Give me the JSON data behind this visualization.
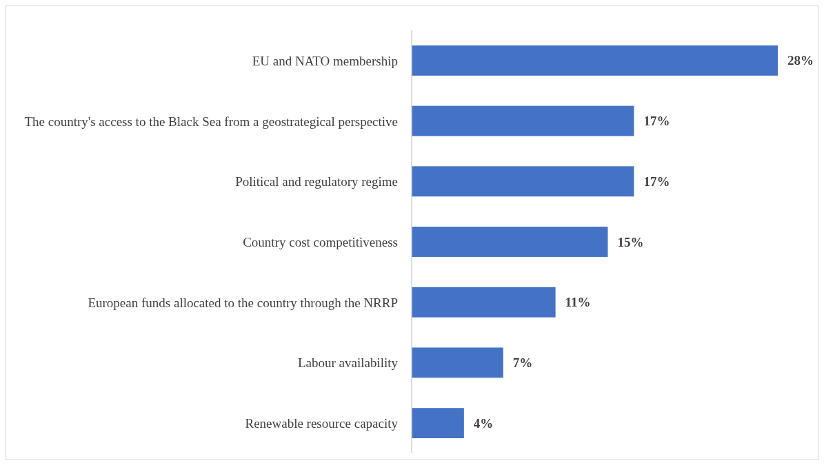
{
  "chart_data": {
    "type": "bar",
    "orientation": "horizontal",
    "categories": [
      "EU and NATO membership",
      "The country's access to the Black Sea from a geostrategical perspective",
      "Political and regulatory regime",
      "Country cost competitiveness",
      "European funds allocated to the country through the NRRP",
      "Labour availability",
      "Renewable resource capacity"
    ],
    "values": [
      28,
      17,
      17,
      15,
      11,
      7,
      4
    ],
    "color": "#4472c4",
    "value_labels": [
      "28%",
      "17%",
      "17%",
      "15%",
      "11%",
      "7%",
      "4%"
    ]
  }
}
